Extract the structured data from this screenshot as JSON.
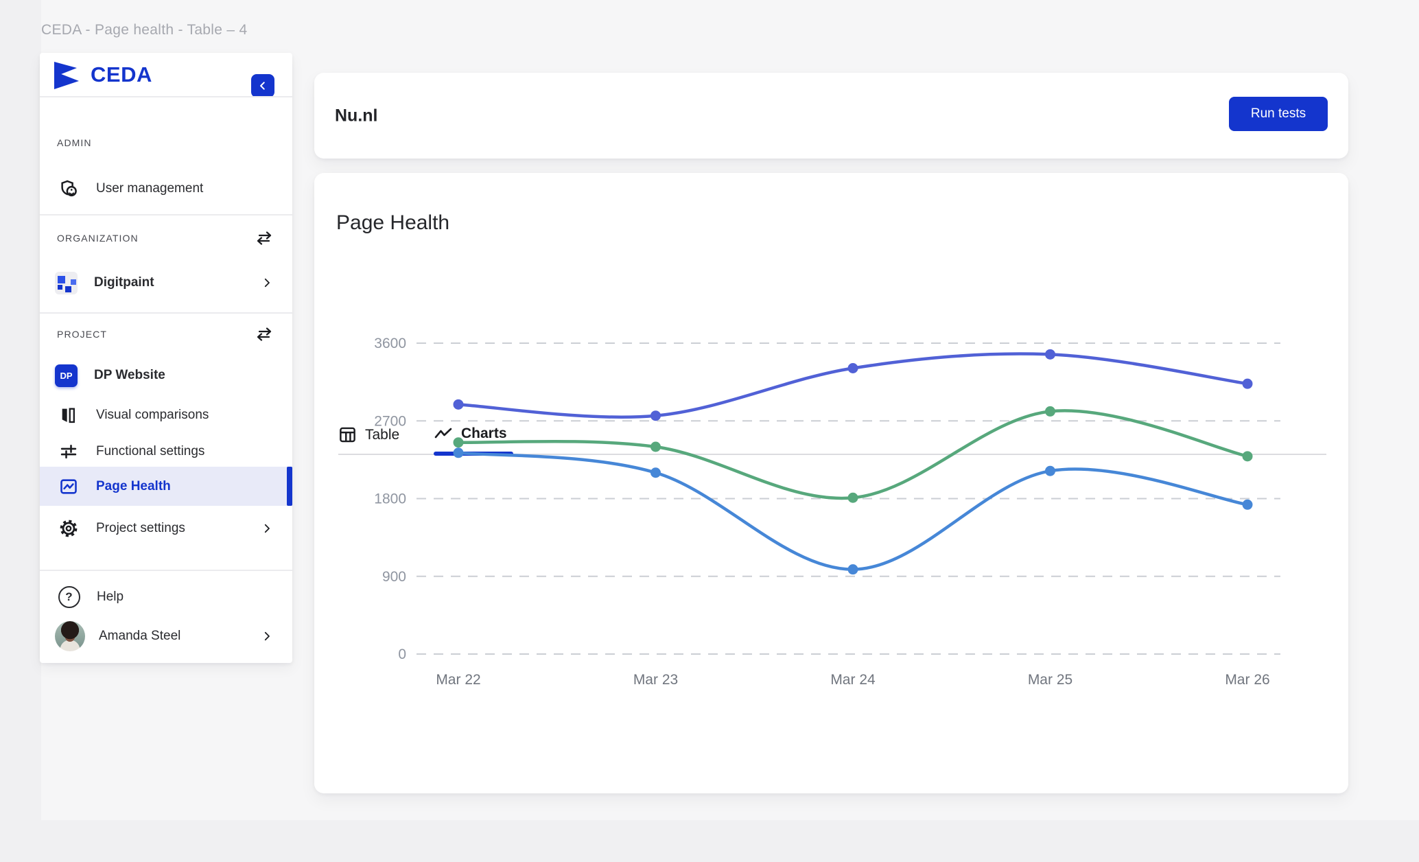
{
  "window_title": "CEDA - Page health - Table – 4",
  "sidebar": {
    "brand": "CEDA",
    "sections": {
      "admin": {
        "label": "ADMIN",
        "items": {
          "user_management": "User management"
        }
      },
      "organization": {
        "label": "ORGANIZATION",
        "items": {
          "digitpaint": "Digitpaint"
        }
      },
      "project": {
        "label": "PROJECT",
        "items": {
          "dp_badge": "DP",
          "dp_website": "DP Website",
          "visual_comparisons": "Visual comparisons",
          "functional_settings": "Functional settings",
          "page_health": "Page Health",
          "project_settings": "Project settings"
        }
      }
    },
    "footer": {
      "help": "Help",
      "user_name": "Amanda Steel"
    }
  },
  "header": {
    "site_name": "Nu.nl",
    "run_tests_label": "Run tests"
  },
  "panel": {
    "title": "Page Health",
    "tabs": {
      "table": "Table",
      "charts": "Charts"
    },
    "active_tab": "Charts"
  },
  "chart_data": {
    "type": "line",
    "x_labels": [
      "Mar 22",
      "Mar 23",
      "Mar 24",
      "Mar 25",
      "Mar 26"
    ],
    "series": [
      {
        "name": "indigo",
        "color": "#5161D6",
        "values": [
          2890,
          2760,
          3310,
          3470,
          3130
        ]
      },
      {
        "name": "green",
        "color": "#57A87C",
        "values": [
          2450,
          2400,
          1810,
          2810,
          2290
        ]
      },
      {
        "name": "blue",
        "color": "#4687D7",
        "values": [
          2330,
          2100,
          980,
          2120,
          1730
        ]
      }
    ],
    "y_ticks": [
      0,
      900,
      1800,
      2700,
      3600
    ],
    "ylim": [
      0,
      3800
    ],
    "grid": "horizontal-dashed",
    "legend": "none"
  },
  "colors": {
    "accent": "#1435CD",
    "selected_item_bg": "#E8EAF8",
    "gridline": "#CBCED4",
    "y_axis_text": "#8F95A0",
    "x_axis_text": "#70757E",
    "window_title_text": "#A6A8AF"
  }
}
